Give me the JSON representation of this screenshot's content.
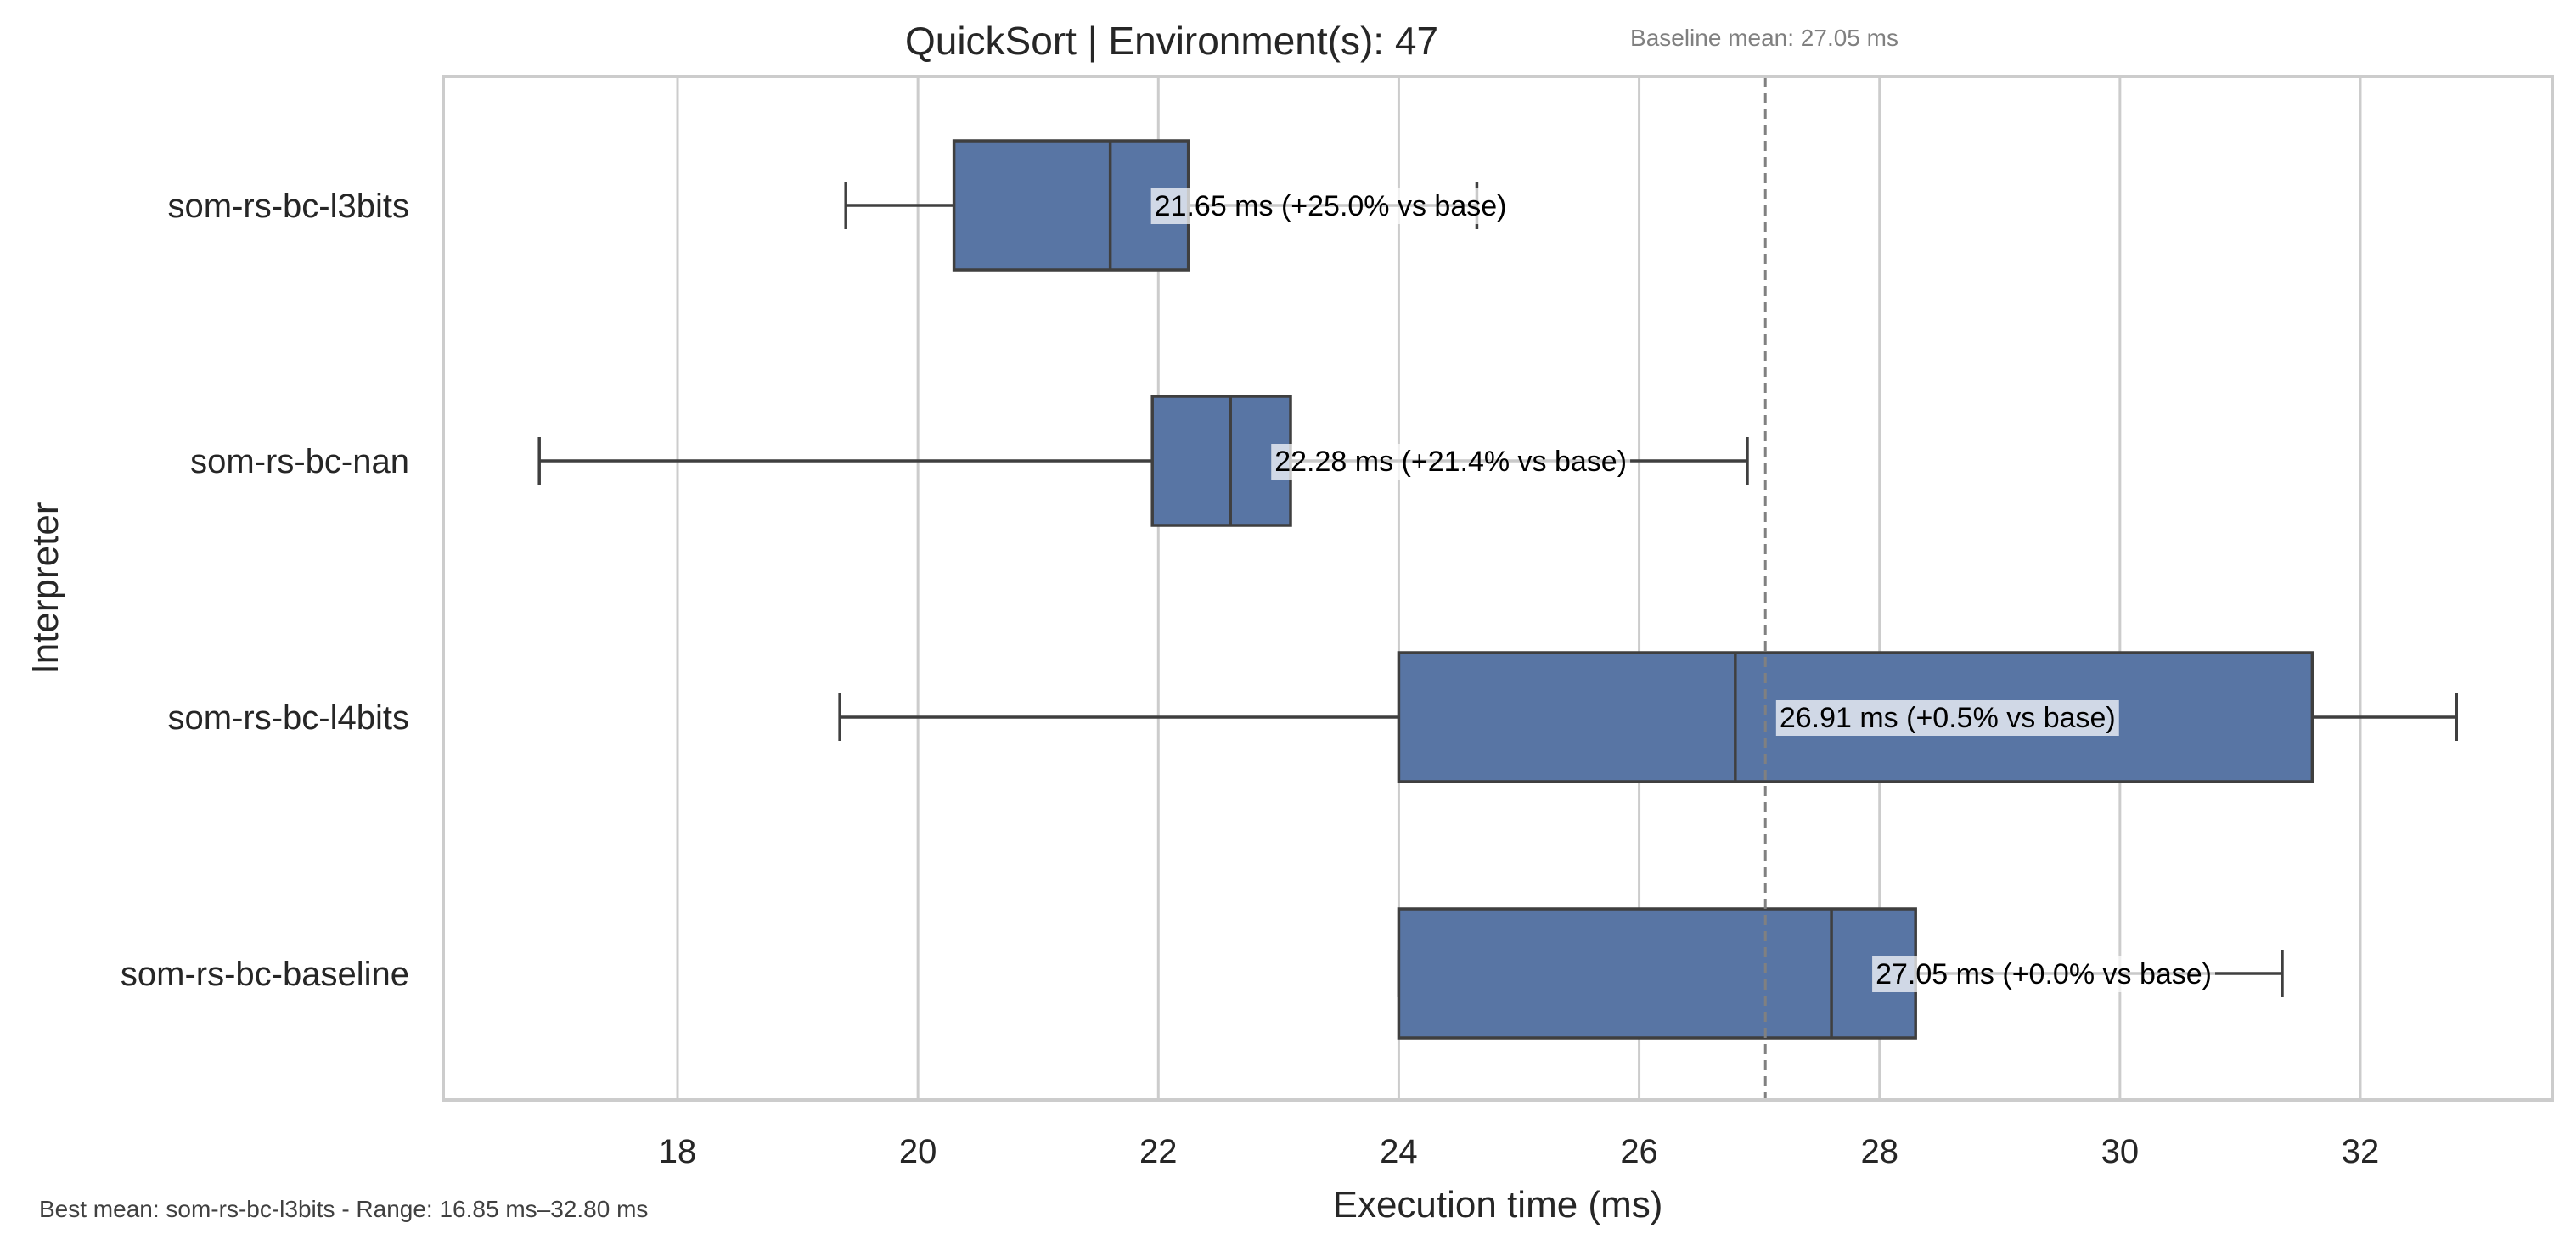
{
  "chart_data": {
    "type": "box",
    "orientation": "horizontal",
    "title": "QuickSort | Environment(s): 47",
    "xlabel": "Execution time (ms)",
    "ylabel": "Interpreter",
    "xlim": [
      16.0,
      33.8
    ],
    "xticks": [
      18,
      20,
      22,
      24,
      26,
      28,
      30,
      32
    ],
    "grid": "vertical",
    "box_color": "#5875a4",
    "edge_color": "#3f3f3f",
    "reference_line": {
      "value": 27.05,
      "label": "Baseline mean: 27.05 ms",
      "color": "#808080",
      "style": "dashed"
    },
    "categories": [
      "som-rs-bc-l3bits",
      "som-rs-bc-nan",
      "som-rs-bc-l4bits",
      "som-rs-bc-baseline"
    ],
    "boxes": [
      {
        "name": "som-rs-bc-l3bits",
        "whisker_low": 19.4,
        "q1": 20.3,
        "median": 21.6,
        "q3": 22.25,
        "whisker_high": 24.65,
        "label": "21.65 ms  (+25.0% vs base)"
      },
      {
        "name": "som-rs-bc-nan",
        "whisker_low": 16.85,
        "q1": 21.95,
        "median": 22.6,
        "q3": 23.1,
        "whisker_high": 26.9,
        "label": "22.28 ms  (+21.4% vs base)"
      },
      {
        "name": "som-rs-bc-l4bits",
        "whisker_low": 19.35,
        "q1": 24.0,
        "median": 26.8,
        "q3": 31.6,
        "whisker_high": 32.8,
        "label": "26.91 ms  (+0.5% vs base)"
      },
      {
        "name": "som-rs-bc-baseline",
        "whisker_low": 24.0,
        "q1": 24.0,
        "median": 27.6,
        "q3": 28.3,
        "whisker_high": 31.35,
        "label": "27.05 ms  (+0.0% vs base)"
      }
    ],
    "footnote": "Best mean: som-rs-bc-l3bits - Range: 16.85 ms–32.80 ms"
  }
}
